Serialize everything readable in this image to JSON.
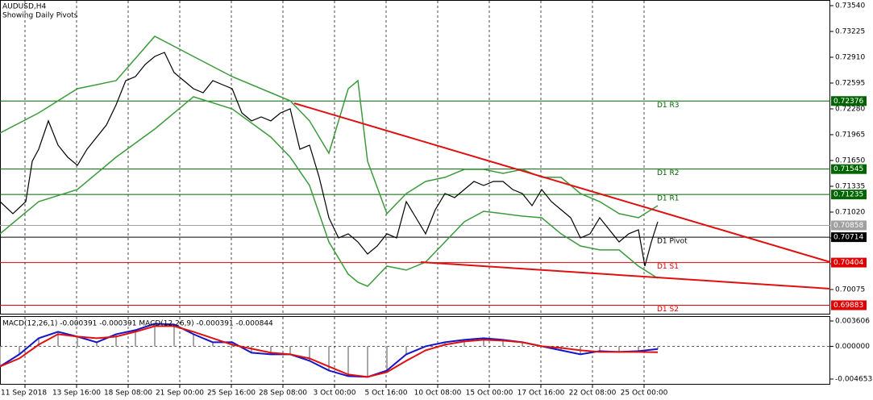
{
  "chart_data": [
    {
      "type": "line",
      "title": "AUDUSD,H4",
      "subtitle": "Showing Daily Pivots",
      "xlim": [
        0,
        257.5
      ],
      "xticks": [
        {
          "value": 7.75,
          "label": "11 Sep 2018"
        },
        {
          "value": 23.75,
          "label": "13 Sep 16:00"
        },
        {
          "value": 39.75,
          "label": "18 Sep 08:00"
        },
        {
          "value": 55.75,
          "label": "21 Sep 00:00"
        },
        {
          "value": 71.75,
          "label": "25 Sep 16:00"
        },
        {
          "value": 87.75,
          "label": "28 Sep 08:00"
        },
        {
          "value": 103.75,
          "label": "3 Oct 00:00"
        },
        {
          "value": 119.75,
          "label": "5 Oct 16:00"
        },
        {
          "value": 135.75,
          "label": "10 Oct 08:00"
        },
        {
          "value": 151.75,
          "label": "15 Oct 00:00"
        },
        {
          "value": 167.75,
          "label": "17 Oct 16:00"
        },
        {
          "value": 183.75,
          "label": "22 Oct 08:00"
        },
        {
          "value": 199.75,
          "label": "25 Oct 00:00"
        }
      ],
      "ylim": [
        0.6977,
        0.73609
      ],
      "yticks": [
        {
          "value": 0.7354,
          "label": "0.73540"
        },
        0.73225,
        {
          "value": 0.7291,
          "label": "0.72910"
        },
        0.72595,
        {
          "value": 0.7228,
          "label": "0.72280"
        },
        0.71965,
        {
          "value": 0.7165,
          "label": "0.71650"
        },
        0.71335,
        {
          "value": 0.7102,
          "label": "0.71020"
        },
        0.70705,
        {
          "value": 0.7039,
          "label": "0.70390"
        },
        0.70075
      ],
      "grid": true,
      "series": [
        {
          "color": "#000000",
          "x": [
            0,
            4,
            8,
            10,
            12,
            15,
            18,
            21,
            24,
            27,
            30,
            33,
            36,
            39,
            42,
            45,
            48,
            51,
            54,
            57,
            60,
            63,
            66,
            69,
            72,
            75,
            78,
            81,
            84,
            87,
            90,
            93,
            96,
            99,
            102,
            105,
            108,
            111,
            114,
            117,
            120,
            123,
            126,
            129,
            132,
            135,
            138,
            141,
            144,
            147,
            150,
            153,
            156,
            159,
            162,
            165,
            168,
            171,
            174,
            177,
            180,
            183,
            186,
            189,
            192,
            195,
            198,
            200,
            202,
            204
          ],
          "values": [
            0.71148,
            0.71001,
            0.71148,
            0.7164,
            0.71788,
            0.72133,
            0.71837,
            0.7169,
            0.71591,
            0.71788,
            0.71936,
            0.72083,
            0.72329,
            0.72625,
            0.72674,
            0.72822,
            0.7292,
            0.72969,
            0.72723,
            0.72625,
            0.72526,
            0.72477,
            0.72625,
            0.72575,
            0.72526,
            0.72231,
            0.72133,
            0.72182,
            0.72133,
            0.72231,
            0.7228,
            0.71788,
            0.71837,
            0.71444,
            0.70951,
            0.70705,
            0.70755,
            0.70656,
            0.70508,
            0.70607,
            0.70755,
            0.70705,
            0.71148,
            0.70951,
            0.70755,
            0.7105,
            0.71247,
            0.71197,
            0.71296,
            0.71394,
            0.71345,
            0.71394,
            0.71394,
            0.71296,
            0.71247,
            0.71099,
            0.71296,
            0.71148,
            0.7105,
            0.70951,
            0.70705,
            0.70755,
            0.70951,
            0.70804,
            0.70656,
            0.70755,
            0.70804,
            0.70361,
            0.70656,
            0.70902
          ]
        },
        {
          "color": "#3c9a3c",
          "x": [
            0,
            12,
            24,
            36,
            48,
            60,
            72,
            84,
            90,
            96,
            102,
            108,
            111,
            114,
            120,
            126,
            132,
            138,
            144,
            150,
            156,
            162,
            168,
            174,
            180,
            186,
            192,
            198,
            204
          ],
          "values": [
            0.71985,
            0.72231,
            0.72526,
            0.72625,
            0.73166,
            0.7292,
            0.72674,
            0.72477,
            0.72379,
            0.72133,
            0.71739,
            0.72526,
            0.72625,
            0.7164,
            0.71001,
            0.71247,
            0.71394,
            0.71444,
            0.71542,
            0.71542,
            0.71493,
            0.71542,
            0.71444,
            0.71444,
            0.71247,
            0.71148,
            0.71001,
            0.70951,
            0.71099
          ]
        },
        {
          "color": "#3c9a3c",
          "x": [
            0,
            12,
            24,
            36,
            48,
            60,
            72,
            84,
            90,
            96,
            102,
            108,
            111,
            114,
            120,
            126,
            132,
            138,
            144,
            150,
            156,
            162,
            168,
            174,
            180,
            186,
            192,
            198,
            204
          ],
          "values": [
            0.70755,
            0.71148,
            0.71296,
            0.7169,
            0.72034,
            0.72428,
            0.7228,
            0.71936,
            0.7169,
            0.71345,
            0.70656,
            0.70262,
            0.70164,
            0.70115,
            0.70361,
            0.70312,
            0.7041,
            0.70656,
            0.70902,
            0.7103,
            0.71001,
            0.70971,
            0.70951,
            0.70755,
            0.70607,
            0.70558,
            0.70558,
            0.70361,
            0.70213
          ]
        }
      ],
      "trendlines": [
        {
          "color": "#e01010",
          "x": [
            91.25,
            257.5
          ],
          "values": [
            0.72349,
            0.7041
          ]
        },
        {
          "color": "#e01010",
          "x": [
            130.5,
            257.5
          ],
          "values": [
            0.7041,
            0.70085
          ]
        }
      ],
      "levels": [
        {
          "name": "D1 R3",
          "value": 0.72376,
          "color": "#006400"
        },
        {
          "name": "D1 R2",
          "value": 0.71545,
          "color": "#006400"
        },
        {
          "name": "D1 R1",
          "value": 0.71235,
          "color": "#006400"
        },
        {
          "name": "D1 Pivot",
          "value": 0.70714,
          "color": "#000000"
        },
        {
          "name": "D1 S1",
          "value": 0.70404,
          "color": "#e00000"
        },
        {
          "name": "D1 S2",
          "value": 0.69883,
          "color": "#e00000"
        }
      ],
      "current_price": 0.70858,
      "current_color": "#a0a0a0"
    },
    {
      "type": "line",
      "title": "MACD(12,26,1) -0.000391 -0.000391 MACD(12,26,9) -0.000391 -0.000844",
      "histogram": true,
      "histogram_color": "#a8a8a8",
      "ylim": [
        -0.005456,
        0.00418
      ],
      "yticks": [
        0.003606,
        {
          "value": 0,
          "label": "0.000000"
        },
        -0.004653
      ],
      "x": [
        0,
        6,
        12,
        18,
        24,
        30,
        36,
        42,
        48,
        54,
        60,
        66,
        72,
        78,
        84,
        90,
        96,
        102,
        108,
        114,
        120,
        126,
        132,
        138,
        144,
        150,
        156,
        162,
        168,
        174,
        180,
        186,
        192,
        198,
        204
      ],
      "series": [
        {
          "color": "#1515c8",
          "values": [
            -0.002868,
            -0.001147,
            0.001147,
            0.002065,
            0.001376,
            0.000574,
            0.001721,
            0.002294,
            0.003212,
            0.003097,
            0.001721,
            0.000574,
            0.000574,
            -0.000917,
            -0.001147,
            -0.001147,
            -0.002065,
            -0.003441,
            -0.004244,
            -0.004359,
            -0.003441,
            -0.001147,
            0,
            0.000574,
            0.000918,
            0.001147,
            0.000918,
            0.000574,
            0,
            -0.000574,
            -0.001147,
            -0.000688,
            -0.000803,
            -0.000688,
            -0.000391
          ]
        },
        {
          "color": "#e01010",
          "values": [
            -0.002868,
            -0.001721,
            0.000229,
            0.001721,
            0.001376,
            0.001147,
            0.001376,
            0.002065,
            0.002868,
            0.002868,
            0.002065,
            0.001147,
            0.000229,
            -0.000344,
            -0.000918,
            -0.001147,
            -0.001721,
            -0.002868,
            -0.004015,
            -0.004359,
            -0.003671,
            -0.002065,
            -0.000574,
            0.000229,
            0.000688,
            0.000918,
            0.000803,
            0.000574,
            0,
            -0.000229,
            -0.000574,
            -0.000803,
            -0.000803,
            -0.000803,
            -0.000844
          ]
        }
      ]
    }
  ]
}
